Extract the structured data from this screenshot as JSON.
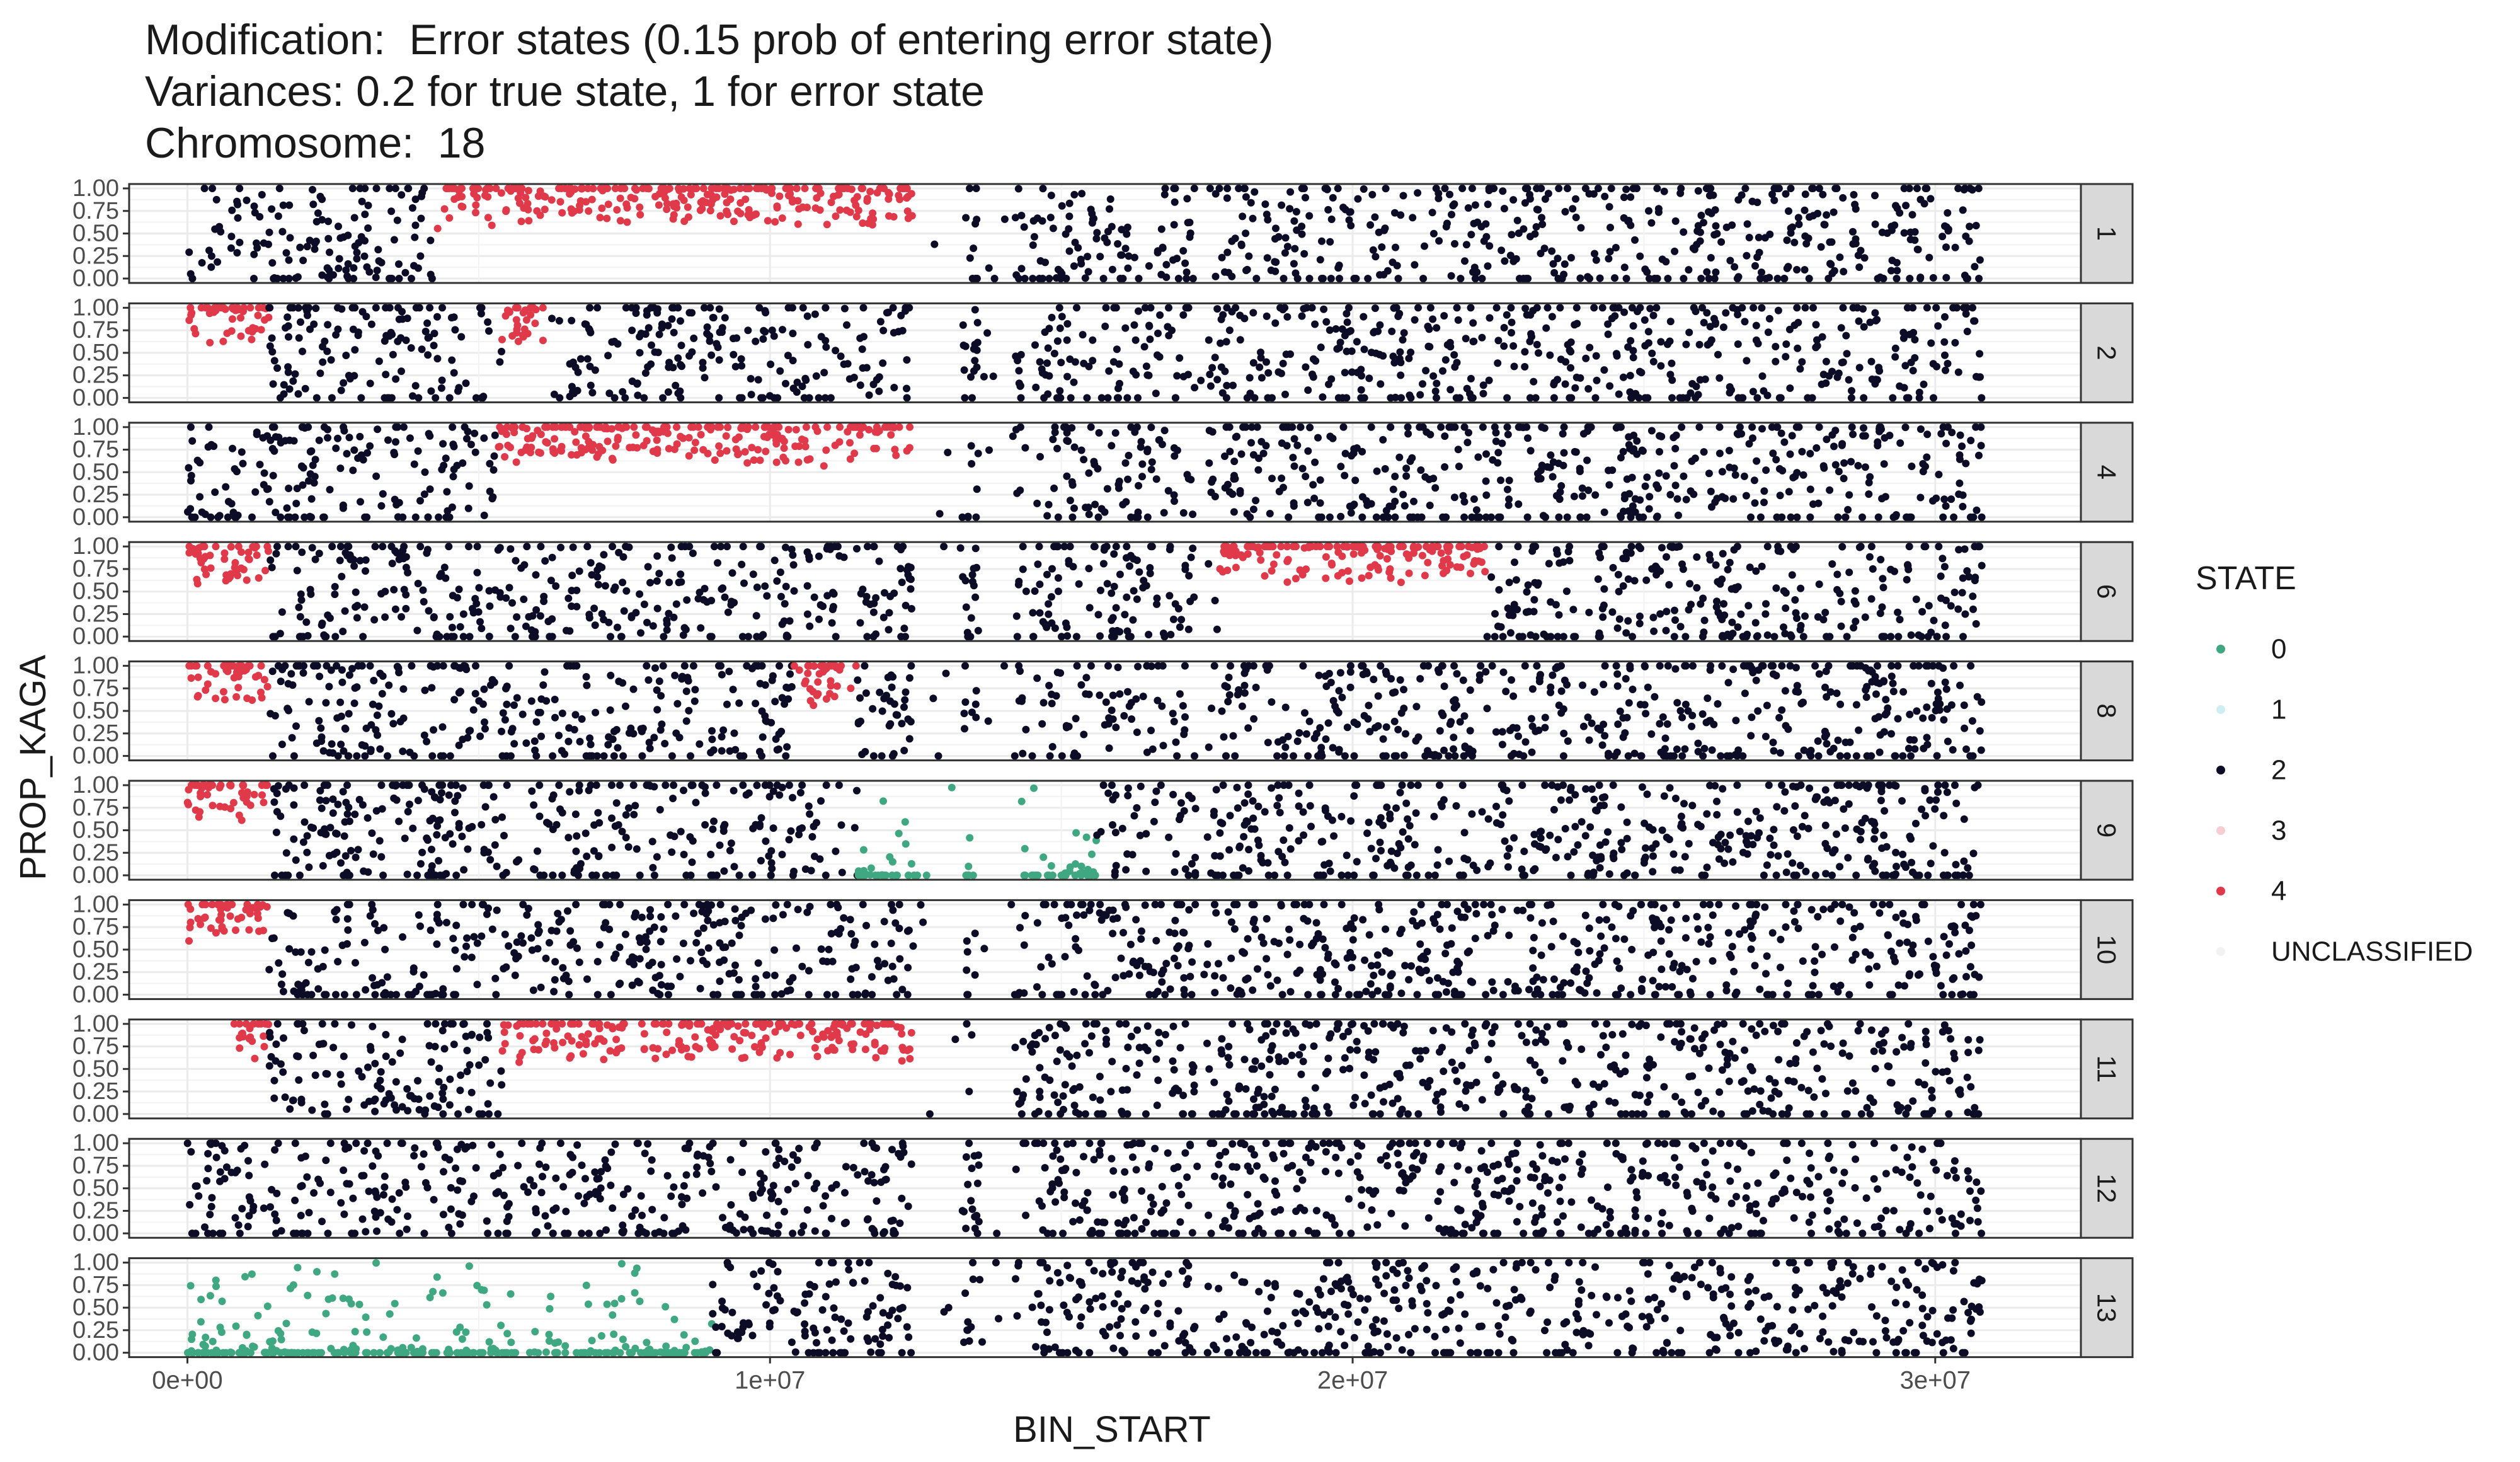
{
  "title_lines": [
    "Modification:  Error states (0.15 prob of entering error state)",
    "Variances: 0.2 for true state, 1 for error state",
    "Chromosome:  18"
  ],
  "chart_data": {
    "type": "scatter",
    "facet_by": "sample",
    "xlabel": "BIN_START",
    "ylabel": "PROP_KAGA",
    "xlim": [
      -1000000,
      32500000
    ],
    "ylim": [
      0,
      1
    ],
    "x_ticks": [
      0,
      10000000,
      20000000,
      30000000
    ],
    "x_tick_labels": [
      "0e+00",
      "1e+07",
      "2e+07",
      "3e+07"
    ],
    "y_ticks": [
      0,
      0.25,
      0.5,
      0.75,
      1
    ],
    "y_tick_labels": [
      "0.00",
      "0.25",
      "0.50",
      "0.75",
      "1.00"
    ],
    "grid": true,
    "legend": {
      "title": "STATE",
      "placement": "right",
      "entries": [
        {
          "label": "0",
          "color": "#3fa882"
        },
        {
          "label": "1",
          "color": "#cdeef2"
        },
        {
          "label": "2",
          "color": "#0d0c26"
        },
        {
          "label": "3",
          "color": "#f7cdd3"
        },
        {
          "label": "4",
          "color": "#e0394a"
        },
        {
          "label": "UNCLASSIFIED",
          "color": "#f2f2f2"
        }
      ]
    },
    "data_extent": [
      0,
      30800000
    ],
    "panels": [
      {
        "label": "1",
        "segments": [
          {
            "state": "2",
            "start": 0,
            "end": 4200000
          },
          {
            "state": "4",
            "start": 4200000,
            "end": 12500000
          },
          {
            "state": "2",
            "start": 12500000,
            "end": 30800000
          }
        ]
      },
      {
        "label": "2",
        "segments": [
          {
            "state": "4",
            "start": 0,
            "end": 1400000
          },
          {
            "state": "2",
            "start": 1400000,
            "end": 5400000
          },
          {
            "state": "4",
            "start": 5400000,
            "end": 6200000
          },
          {
            "state": "2",
            "start": 6200000,
            "end": 30800000
          }
        ]
      },
      {
        "label": "4",
        "segments": [
          {
            "state": "2",
            "start": 0,
            "end": 5300000
          },
          {
            "state": "4",
            "start": 5300000,
            "end": 12500000
          },
          {
            "state": "2",
            "start": 12500000,
            "end": 30800000
          }
        ]
      },
      {
        "label": "6",
        "segments": [
          {
            "state": "4",
            "start": 0,
            "end": 1400000
          },
          {
            "state": "2",
            "start": 1400000,
            "end": 17700000
          },
          {
            "state": "4",
            "start": 17700000,
            "end": 22300000
          },
          {
            "state": "2",
            "start": 22300000,
            "end": 30800000
          }
        ]
      },
      {
        "label": "8",
        "segments": [
          {
            "state": "4",
            "start": 0,
            "end": 1400000
          },
          {
            "state": "2",
            "start": 1400000,
            "end": 10400000
          },
          {
            "state": "4",
            "start": 10400000,
            "end": 11500000
          },
          {
            "state": "2",
            "start": 11500000,
            "end": 30800000
          }
        ]
      },
      {
        "label": "9",
        "segments": [
          {
            "state": "4",
            "start": 0,
            "end": 1400000
          },
          {
            "state": "2",
            "start": 1400000,
            "end": 11500000
          },
          {
            "state": "0",
            "start": 11500000,
            "end": 15600000
          },
          {
            "state": "2",
            "start": 15600000,
            "end": 30800000
          }
        ]
      },
      {
        "label": "10",
        "segments": [
          {
            "state": "4",
            "start": 0,
            "end": 1400000
          },
          {
            "state": "2",
            "start": 1400000,
            "end": 30800000
          }
        ]
      },
      {
        "label": "11",
        "segments": [
          {
            "state": "4",
            "start": 800000,
            "end": 1400000
          },
          {
            "state": "2",
            "start": 1400000,
            "end": 5400000
          },
          {
            "state": "4",
            "start": 5400000,
            "end": 7500000
          },
          {
            "state": "4",
            "start": 7800000,
            "end": 12500000
          },
          {
            "state": "2",
            "start": 12500000,
            "end": 30800000
          }
        ]
      },
      {
        "label": "12",
        "segments": [
          {
            "state": "2",
            "start": 0,
            "end": 30800000
          }
        ]
      },
      {
        "label": "13",
        "segments": [
          {
            "state": "0",
            "start": 0,
            "end": 9000000
          },
          {
            "state": "2",
            "start": 9000000,
            "end": 30800000
          }
        ]
      }
    ]
  }
}
